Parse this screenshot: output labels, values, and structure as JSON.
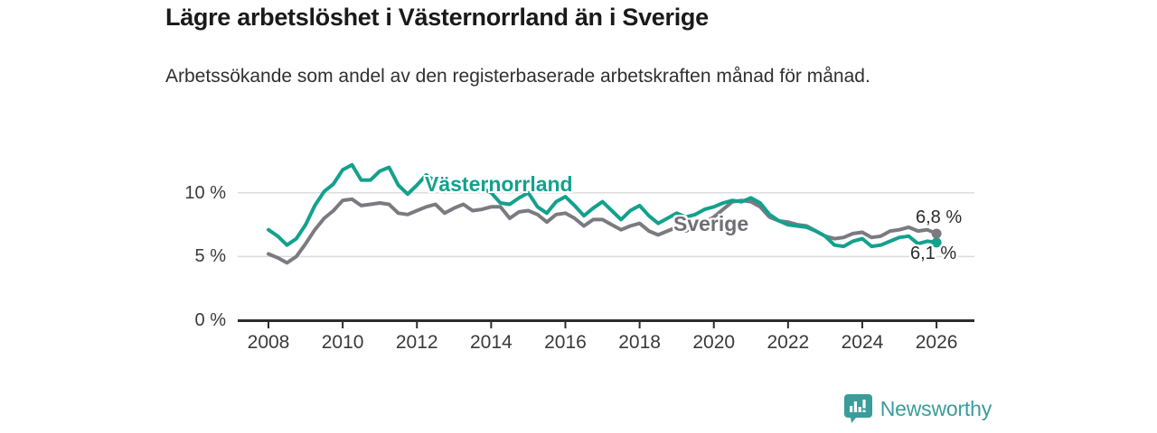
{
  "header": {
    "title": "Lägre arbetslöshet i Västernorrland än i Sverige",
    "subtitle": "Arbetssökande som andel av den registerbaserade arbetskraften månad för månad."
  },
  "footer": {
    "brand": "Newsworthy"
  },
  "colors": {
    "vasternorrland": "#13a18d",
    "sverige": "#7b7a81",
    "grid": "#dcdcdc",
    "axis": "#2d2d2d",
    "tick_text": "#3a3a3a",
    "brand_teal": "#3a9d9a"
  },
  "chart_data": {
    "type": "line",
    "title": "Lägre arbetslöshet i Västernorrland än i Sverige",
    "subtitle": "Arbetssökande som andel av den registerbaserade arbetskraften månad för månad.",
    "xlabel": "",
    "ylabel": "%",
    "grid": "horizontal",
    "legend_position": "inline-labels",
    "x": {
      "start": 2008,
      "step": 0.25,
      "end": 2026
    },
    "x_ticks": [
      2008,
      2010,
      2012,
      2014,
      2016,
      2018,
      2020,
      2022,
      2024,
      2026
    ],
    "y_ticks": [
      {
        "value": 0,
        "label": "0 %"
      },
      {
        "value": 5,
        "label": "5 %"
      },
      {
        "value": 10,
        "label": "10 %"
      }
    ],
    "ylim": [
      0,
      13.5
    ],
    "xlim": [
      2007.2,
      2027
    ],
    "series": [
      {
        "name": "Västernorrland",
        "color_key": "vasternorrland",
        "end_label": "6,1 %",
        "end_value": 6.1,
        "values": [
          7.1,
          6.6,
          5.9,
          6.4,
          7.5,
          9.0,
          10.1,
          10.7,
          11.8,
          12.2,
          11.0,
          11.0,
          11.7,
          12.0,
          10.6,
          9.9,
          10.6,
          11.4,
          10.9,
          10.1,
          10.5,
          10.2,
          10.9,
          10.4,
          10.0,
          9.2,
          9.1,
          9.6,
          10.0,
          8.9,
          8.4,
          9.3,
          9.7,
          9.0,
          8.2,
          8.8,
          9.3,
          8.6,
          7.9,
          8.6,
          9.0,
          8.2,
          7.6,
          8.0,
          8.4,
          8.1,
          8.3,
          8.7,
          8.9,
          9.2,
          9.4,
          9.3,
          9.6,
          9.2,
          8.3,
          7.8,
          7.5,
          7.4,
          7.3,
          7.0,
          6.6,
          5.9,
          5.8,
          6.2,
          6.4,
          5.8,
          5.9,
          6.2,
          6.5,
          6.6,
          6.0,
          6.2,
          6.1
        ]
      },
      {
        "name": "Sverige",
        "color_key": "sverige",
        "end_label": "6,8 %",
        "end_value": 6.8,
        "values": [
          5.2,
          4.9,
          4.5,
          5.0,
          6.0,
          7.1,
          8.0,
          8.6,
          9.4,
          9.5,
          9.0,
          9.1,
          9.2,
          9.1,
          8.4,
          8.3,
          8.6,
          8.9,
          9.1,
          8.4,
          8.8,
          9.1,
          8.6,
          8.7,
          8.9,
          8.9,
          8.0,
          8.5,
          8.6,
          8.3,
          7.7,
          8.3,
          8.4,
          8.0,
          7.4,
          7.9,
          7.9,
          7.5,
          7.1,
          7.4,
          7.6,
          7.0,
          6.7,
          7.0,
          7.3,
          7.0,
          7.4,
          7.7,
          8.1,
          8.7,
          9.3,
          9.4,
          9.3,
          8.9,
          8.1,
          7.8,
          7.7,
          7.5,
          7.4,
          7.0,
          6.6,
          6.4,
          6.5,
          6.8,
          6.9,
          6.5,
          6.6,
          7.0,
          7.1,
          7.3,
          7.0,
          7.1,
          6.8
        ]
      }
    ]
  }
}
